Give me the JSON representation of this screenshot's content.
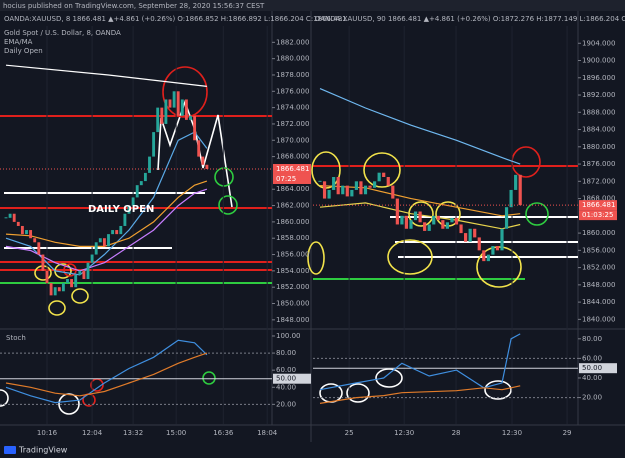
{
  "header": "hocius published on TradingView.com, September 28, 2020 15:56:37 CEST",
  "footer": "TradingView",
  "panes": [
    {
      "quote": "OANDA:XAUUSD, 8  1866.481  ▲+4.861 (+0.26%)  O:1866.852  H:1866.892  L:1866.204  C:1866.481",
      "labels": [
        "Gold Spot / U.S. Dollar, 8, OANDA",
        "EMA/MA",
        "Daily Open"
      ],
      "annotation": "DAILY OPEN",
      "price": {
        "type": "candlestick",
        "close": [
          1860.5,
          1861,
          1860,
          1859.5,
          1858.5,
          1859,
          1858,
          1857.5,
          1856,
          1854,
          1852.5,
          1851,
          1852,
          1851.5,
          1852.5,
          1853,
          1852,
          1853.5,
          1854,
          1853,
          1855,
          1856,
          1857.5,
          1858,
          1857,
          1858.5,
          1859,
          1858.5,
          1859.5,
          1861,
          1862,
          1863,
          1864.5,
          1865,
          1866,
          1868,
          1871,
          1874,
          1872,
          1875,
          1874,
          1876,
          1873,
          1875,
          1872.5,
          1873,
          1870,
          1868,
          1867,
          1866.481
        ],
        "up_color": "#26a69a",
        "down_color": "#ef5350",
        "ylim": [
          1847,
          1884
        ],
        "yticks": [
          {
            "value": 1882,
            "label": "1882.000"
          },
          {
            "value": 1880,
            "label": "1880.000"
          },
          {
            "value": 1878,
            "label": "1878.000"
          },
          {
            "value": 1876,
            "label": "1876.000"
          },
          {
            "value": 1874,
            "label": "1874.000"
          },
          {
            "value": 1872,
            "label": "1872.000"
          },
          {
            "value": 1870,
            "label": "1870.000"
          },
          {
            "value": 1868,
            "label": "1868.000"
          },
          {
            "value": 1864,
            "label": "1864.000"
          },
          {
            "value": 1862,
            "label": "1862.000"
          },
          {
            "value": 1860,
            "label": "1860.000"
          },
          {
            "value": 1858,
            "label": "1858.000"
          },
          {
            "value": 1856,
            "label": "1856.000"
          },
          {
            "value": 1854,
            "label": "1854.000"
          },
          {
            "value": 1852,
            "label": "1852.000"
          },
          {
            "value": 1850,
            "label": "1850.000"
          },
          {
            "value": 1848,
            "label": "1848.000"
          }
        ],
        "last_label": {
          "value": 1866.481,
          "label": "1866.481"
        },
        "countdown": "07:25",
        "lines": [
          {
            "color": "#ffffff",
            "x": [
              0,
              25,
              49
            ],
            "values": [
              1879.2,
              1878,
              1876.6
            ]
          },
          {
            "color": "#5aa9e6",
            "x": [
              0,
              6,
              12,
              18,
              24,
              30,
              36,
              42,
              46,
              49
            ],
            "values": [
              1858,
              1857,
              1854,
              1853.5,
              1856,
              1859,
              1863,
              1870,
              1871,
              1869
            ]
          },
          {
            "color": "#c77dff",
            "x": [
              0,
              6,
              12,
              18,
              24,
              30,
              36,
              42,
              46,
              49
            ],
            "values": [
              1857,
              1856.5,
              1855,
              1854,
              1855,
              1857,
              1859,
              1862,
              1863.5,
              1864
            ]
          },
          {
            "color": "#f0a030",
            "x": [
              0,
              6,
              12,
              18,
              24,
              30,
              36,
              42,
              46,
              49
            ],
            "values": [
              1858.5,
              1858.3,
              1857.5,
              1857,
              1857,
              1858,
              1860,
              1863,
              1864.5,
              1865
            ]
          }
        ]
      },
      "stoch": {
        "title": "Stoch",
        "ylim": [
          -3,
          107
        ],
        "yticks": [
          {
            "value": 100,
            "label": "100.00"
          },
          {
            "value": 80,
            "label": "80.00"
          },
          {
            "value": 60,
            "label": "60.00"
          },
          {
            "value": 40,
            "label": "40.00"
          },
          {
            "value": 20,
            "label": "20.00"
          }
        ],
        "level": {
          "value": 50,
          "label": "50.00"
        },
        "lines": [
          {
            "color": "#3f8fe0",
            "x": [
              0,
              6,
              12,
              18,
              24,
              30,
              36,
              42,
              46,
              49
            ],
            "values": [
              40,
              30,
              22,
              25,
              45,
              62,
              75,
              95,
              92,
              78
            ]
          },
          {
            "color": "#e07b2a",
            "x": [
              0,
              6,
              12,
              18,
              24,
              30,
              36,
              42,
              46,
              49
            ],
            "values": [
              45,
              40,
              33,
              30,
              35,
              45,
              55,
              68,
              75,
              80
            ]
          }
        ]
      },
      "xticks": [
        {
          "value": 10,
          "label": "10:16"
        },
        {
          "value": 21,
          "label": "12:04"
        },
        {
          "value": 31,
          "label": "13:32"
        },
        {
          "value": 41.5,
          "label": "15:00"
        },
        {
          "value": 53,
          "label": "16:36"
        },
        {
          "value": 63.7,
          "label": "18:04"
        }
      ]
    },
    {
      "quote": "OANDA:XAUUSD, 90  1866.481  ▲+4.861 (+0.26%)  O:1872.276  H:1877.149  L:1866.204  C:1866.481",
      "price": {
        "type": "candlestick",
        "close": [
          1872,
          1868,
          1870,
          1873,
          1869,
          1871,
          1868.5,
          1870,
          1872,
          1869,
          1871,
          1870.5,
          1872,
          1874,
          1873,
          1871,
          1868,
          1862,
          1864,
          1861,
          1863,
          1865,
          1862.5,
          1860.5,
          1862,
          1864,
          1863,
          1861,
          1862.5,
          1863.5,
          1862,
          1860,
          1858,
          1861,
          1859,
          1856,
          1853.5,
          1855,
          1857,
          1856,
          1861,
          1866,
          1870,
          1873.5,
          1866.481
        ],
        "up_color": "#26a69a",
        "down_color": "#ef5350",
        "ylim": [
          1838,
          1908
        ],
        "yticks": [
          {
            "value": 1904,
            "label": "1904.000"
          },
          {
            "value": 1900,
            "label": "1900.000"
          },
          {
            "value": 1896,
            "label": "1896.000"
          },
          {
            "value": 1892,
            "label": "1892.000"
          },
          {
            "value": 1888,
            "label": "1888.000"
          },
          {
            "value": 1884,
            "label": "1884.000"
          },
          {
            "value": 1880,
            "label": "1880.000"
          },
          {
            "value": 1876,
            "label": "1876.000"
          },
          {
            "value": 1872,
            "label": "1872.000"
          },
          {
            "value": 1868,
            "label": "1868.000"
          },
          {
            "value": 1860,
            "label": "1860.000"
          },
          {
            "value": 1856,
            "label": "1856.000"
          },
          {
            "value": 1852,
            "label": "1852.000"
          },
          {
            "value": 1848,
            "label": "1848.000"
          },
          {
            "value": 1844,
            "label": "1844.000"
          },
          {
            "value": 1840,
            "label": "1840.000"
          }
        ],
        "last_label": {
          "value": 1866.481,
          "label": "1866.481"
        },
        "countdown": "01:03:25",
        "lines": [
          {
            "color": "#6fb8f0",
            "x": [
              0,
              10,
              20,
              30,
              40,
              44
            ],
            "values": [
              1893.5,
              1889,
              1885,
              1881.5,
              1877.5,
              1876
            ]
          },
          {
            "color": "#f0a030",
            "x": [
              0,
              10,
              20,
              30,
              40,
              44
            ],
            "values": [
              1871,
              1870.5,
              1868,
              1866,
              1864,
              1864.5
            ]
          },
          {
            "color": "#e8d44d",
            "x": [
              0,
              10,
              20,
              30,
              40,
              44
            ],
            "values": [
              1866,
              1867,
              1864.5,
              1863,
              1861,
              1862
            ]
          }
        ]
      },
      "stoch": {
        "ylim": [
          -7,
          89
        ],
        "yticks": [
          {
            "value": 80,
            "label": "80.00"
          },
          {
            "value": 60,
            "label": "60.00"
          },
          {
            "value": 40,
            "label": "40.00"
          },
          {
            "value": 20,
            "label": "20.00"
          }
        ],
        "level": {
          "value": 50,
          "label": "50.00"
        },
        "lines": [
          {
            "color": "#3f8fe0",
            "x": [
              0,
              8,
              14,
              18,
              24,
              30,
              36,
              40,
              42,
              44
            ],
            "values": [
              28,
              35,
              40,
              55,
              42,
              48,
              30,
              35,
              80,
              85
            ]
          },
          {
            "color": "#e07b2a",
            "x": [
              0,
              8,
              14,
              18,
              24,
              30,
              36,
              40,
              42,
              44
            ],
            "values": [
              14,
              20,
              22,
              25,
              26,
              27,
              30,
              28,
              30,
              32
            ]
          }
        ]
      },
      "xticks": [
        {
          "value": 6.4,
          "label": "25"
        },
        {
          "value": 18.5,
          "label": "12:30"
        },
        {
          "value": 29.9,
          "label": "28"
        },
        {
          "value": 42.2,
          "label": "12:30"
        },
        {
          "value": 54.3,
          "label": "29"
        }
      ]
    }
  ]
}
